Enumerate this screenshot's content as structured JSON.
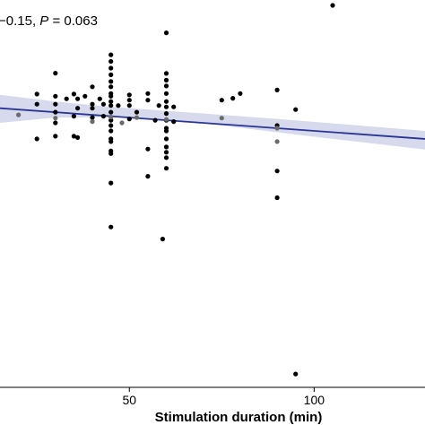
{
  "chart_data": {
    "type": "scatter",
    "annotation": {
      "prefix": "−0.15, ",
      "p_label": "P",
      "p_value": " = 0.063"
    },
    "xlabel": "Stimulation duration (min)",
    "x_ticks": [
      50,
      100
    ],
    "xlim": [
      15,
      130
    ],
    "ylim": [
      -1.0,
      0.45
    ],
    "y_grid": false,
    "colors": {
      "points": "#000000",
      "overlap_points": "#6b6b6b",
      "fit_line": "#2b3595",
      "ci_band": "#c9cce6"
    },
    "fit": {
      "x_start": 15,
      "x_end": 130,
      "y_start": 0.045,
      "y_end": -0.07
    },
    "ci": {
      "x": [
        15,
        30,
        45,
        60,
        75,
        90,
        105,
        130
      ],
      "upper": [
        0.095,
        0.07,
        0.05,
        0.035,
        0.02,
        0.005,
        -0.012,
        -0.04
      ],
      "lower": [
        -0.01,
        0.01,
        0.012,
        0.002,
        -0.02,
        -0.045,
        -0.07,
        -0.11
      ]
    },
    "points": [
      {
        "x": 105,
        "y": 0.43
      },
      {
        "x": 60,
        "y": 0.327
      },
      {
        "x": 45,
        "y": 0.245
      },
      {
        "x": 45,
        "y": 0.22
      },
      {
        "x": 45,
        "y": 0.195
      },
      {
        "x": 30,
        "y": 0.176
      },
      {
        "x": 45,
        "y": 0.17
      },
      {
        "x": 60,
        "y": 0.175
      },
      {
        "x": 60,
        "y": 0.15
      },
      {
        "x": 45,
        "y": 0.145
      },
      {
        "x": 45,
        "y": 0.125
      },
      {
        "x": 40,
        "y": 0.125
      },
      {
        "x": 60,
        "y": 0.128
      },
      {
        "x": 80,
        "y": 0.1
      },
      {
        "x": 90,
        "y": 0.113
      },
      {
        "x": 45,
        "y": 0.1
      },
      {
        "x": 25,
        "y": 0.098
      },
      {
        "x": 35,
        "y": 0.098
      },
      {
        "x": 50,
        "y": 0.095
      },
      {
        "x": 55,
        "y": 0.1
      },
      {
        "x": 60,
        "y": 0.1
      },
      {
        "x": 30,
        "y": 0.09
      },
      {
        "x": 45,
        "y": 0.09
      },
      {
        "x": 38,
        "y": 0.09
      },
      {
        "x": 78,
        "y": 0.082
      },
      {
        "x": 75,
        "y": 0.075
      },
      {
        "x": 33,
        "y": 0.08
      },
      {
        "x": 36,
        "y": 0.08
      },
      {
        "x": 42,
        "y": 0.08
      },
      {
        "x": 45,
        "y": 0.07
      },
      {
        "x": 50,
        "y": 0.075
      },
      {
        "x": 55,
        "y": 0.075
      },
      {
        "x": 60,
        "y": 0.07
      },
      {
        "x": 25,
        "y": 0.06
      },
      {
        "x": 30,
        "y": 0.06
      },
      {
        "x": 40,
        "y": 0.06
      },
      {
        "x": 43,
        "y": 0.06
      },
      {
        "x": 45,
        "y": 0.055
      },
      {
        "x": 47,
        "y": 0.055
      },
      {
        "x": 50,
        "y": 0.055
      },
      {
        "x": 58,
        "y": 0.055
      },
      {
        "x": 60,
        "y": 0.05
      },
      {
        "x": 62,
        "y": 0.05
      },
      {
        "x": 36,
        "y": 0.045
      },
      {
        "x": 40,
        "y": 0.045
      },
      {
        "x": 95,
        "y": 0.04
      },
      {
        "x": 30,
        "y": 0.03
      },
      {
        "x": 45,
        "y": 0.03
      },
      {
        "x": 52,
        "y": 0.03
      },
      {
        "x": 60,
        "y": 0.025
      },
      {
        "x": 35,
        "y": 0.015
      },
      {
        "x": 40,
        "y": 0.01
      },
      {
        "x": 43,
        "y": 0.015
      },
      {
        "x": 45,
        "y": 0.0
      },
      {
        "x": 50,
        "y": 0.005
      },
      {
        "x": 57,
        "y": 0.0
      },
      {
        "x": 60,
        "y": 0.0
      },
      {
        "x": 62,
        "y": -0.005
      },
      {
        "x": 30,
        "y": -0.01
      },
      {
        "x": 45,
        "y": -0.02
      },
      {
        "x": 60,
        "y": -0.03
      },
      {
        "x": 90,
        "y": -0.02
      },
      {
        "x": 45,
        "y": -0.04
      },
      {
        "x": 60,
        "y": -0.04
      },
      {
        "x": 30,
        "y": -0.06
      },
      {
        "x": 35,
        "y": -0.06
      },
      {
        "x": 36,
        "y": -0.065
      },
      {
        "x": 45,
        "y": -0.07
      },
      {
        "x": 60,
        "y": -0.07
      },
      {
        "x": 25,
        "y": -0.07
      },
      {
        "x": 45,
        "y": -0.08
      },
      {
        "x": 60,
        "y": -0.1
      },
      {
        "x": 45,
        "y": -0.115
      },
      {
        "x": 55,
        "y": -0.108
      },
      {
        "x": 60,
        "y": -0.12
      },
      {
        "x": 45,
        "y": -0.125
      },
      {
        "x": 60,
        "y": -0.14
      },
      {
        "x": 60,
        "y": -0.18
      },
      {
        "x": 90,
        "y": -0.19
      },
      {
        "x": 55,
        "y": -0.21
      },
      {
        "x": 45,
        "y": -0.235
      },
      {
        "x": 90,
        "y": -0.29
      },
      {
        "x": 45,
        "y": -0.4
      },
      {
        "x": 59,
        "y": -0.445
      },
      {
        "x": 95,
        "y": -0.95
      },
      {
        "x": 20,
        "y": 0.02,
        "overlap": true
      },
      {
        "x": 30,
        "y": 0.008,
        "overlap": true
      },
      {
        "x": 40,
        "y": -0.005,
        "overlap": true
      },
      {
        "x": 45,
        "y": 0.012,
        "overlap": true
      },
      {
        "x": 48,
        "y": -0.01,
        "overlap": true
      },
      {
        "x": 52,
        "y": 0.01,
        "overlap": true
      },
      {
        "x": 60,
        "y": 0.003,
        "overlap": true
      },
      {
        "x": 75,
        "y": 0.008,
        "overlap": true
      },
      {
        "x": 90,
        "y": -0.03,
        "overlap": true
      },
      {
        "x": 90,
        "y": -0.08,
        "overlap": true
      }
    ]
  }
}
